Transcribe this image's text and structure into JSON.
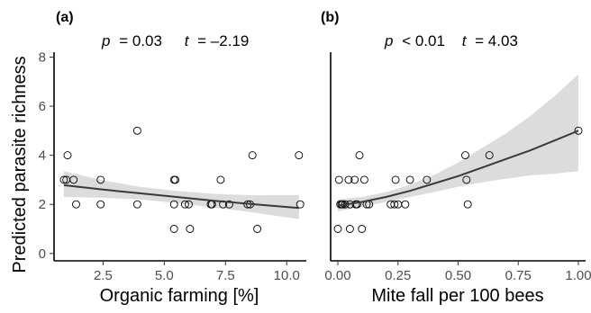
{
  "y_axis_title": "Predicted parasite richness",
  "chart_data": [
    {
      "type": "scatter",
      "panel_label": "(a)",
      "stat_p_symbol": "p",
      "stat_p_value": "= 0.03",
      "stat_t_symbol": "t",
      "stat_t_value": "= –2.19",
      "xlabel": "Organic farming [%]",
      "ylabel": "Predicted parasite richness",
      "xlim": [
        0.5,
        10.8
      ],
      "ylim": [
        -0.3,
        8.2
      ],
      "xticks": [
        2.5,
        5.0,
        7.5,
        10.0
      ],
      "xtick_labels": [
        "2.5",
        "5.0",
        "7.5",
        "10.0"
      ],
      "yticks": [
        0,
        2,
        4,
        6,
        8
      ],
      "ytick_labels": [
        "0",
        "2",
        "4",
        "6",
        "8"
      ],
      "points": [
        {
          "x": 0.9,
          "y": 3
        },
        {
          "x": 1.0,
          "y": 3
        },
        {
          "x": 1.05,
          "y": 4
        },
        {
          "x": 1.3,
          "y": 3
        },
        {
          "x": 1.4,
          "y": 2
        },
        {
          "x": 2.4,
          "y": 3
        },
        {
          "x": 2.4,
          "y": 2
        },
        {
          "x": 3.9,
          "y": 5
        },
        {
          "x": 3.9,
          "y": 2
        },
        {
          "x": 5.4,
          "y": 3
        },
        {
          "x": 5.45,
          "y": 3
        },
        {
          "x": 5.4,
          "y": 2
        },
        {
          "x": 5.4,
          "y": 1
        },
        {
          "x": 5.85,
          "y": 2
        },
        {
          "x": 6.0,
          "y": 2
        },
        {
          "x": 6.05,
          "y": 1
        },
        {
          "x": 6.9,
          "y": 2
        },
        {
          "x": 6.95,
          "y": 2
        },
        {
          "x": 7.3,
          "y": 3
        },
        {
          "x": 7.4,
          "y": 2
        },
        {
          "x": 7.65,
          "y": 2
        },
        {
          "x": 8.4,
          "y": 2
        },
        {
          "x": 8.5,
          "y": 2
        },
        {
          "x": 8.6,
          "y": 4
        },
        {
          "x": 8.8,
          "y": 1
        },
        {
          "x": 10.5,
          "y": 4
        },
        {
          "x": 10.55,
          "y": 2
        }
      ],
      "fit": {
        "x": [
          0.9,
          2.5,
          4.0,
          5.5,
          7.0,
          8.5,
          10.5
        ],
        "y": [
          2.78,
          2.6,
          2.45,
          2.3,
          2.15,
          2.02,
          1.85
        ]
      },
      "ci_upper": [
        3.35,
        2.98,
        2.72,
        2.55,
        2.43,
        2.37,
        2.38
      ],
      "ci_lower": [
        2.3,
        2.27,
        2.2,
        2.06,
        1.88,
        1.69,
        1.4
      ]
    },
    {
      "type": "scatter",
      "panel_label": "(b)",
      "stat_p_symbol": "p",
      "stat_p_value": "< 0.01",
      "stat_t_symbol": "t",
      "stat_t_value": "= 4.03",
      "xlabel": "Mite fall per 100 bees",
      "ylabel": "",
      "xlim": [
        -0.03,
        1.03
      ],
      "ylim": [
        -0.3,
        8.2
      ],
      "xticks": [
        0.0,
        0.25,
        0.5,
        0.75,
        1.0
      ],
      "xtick_labels": [
        "0.00",
        "0.25",
        "0.50",
        "0.75",
        "1.00"
      ],
      "yticks": [],
      "ytick_labels": [],
      "points": [
        {
          "x": 0.0,
          "y": 1
        },
        {
          "x": 0.005,
          "y": 3
        },
        {
          "x": 0.01,
          "y": 2
        },
        {
          "x": 0.015,
          "y": 2
        },
        {
          "x": 0.02,
          "y": 2
        },
        {
          "x": 0.03,
          "y": 2
        },
        {
          "x": 0.045,
          "y": 3
        },
        {
          "x": 0.05,
          "y": 2
        },
        {
          "x": 0.05,
          "y": 1
        },
        {
          "x": 0.07,
          "y": 3
        },
        {
          "x": 0.075,
          "y": 2
        },
        {
          "x": 0.08,
          "y": 2
        },
        {
          "x": 0.09,
          "y": 4
        },
        {
          "x": 0.1,
          "y": 1
        },
        {
          "x": 0.11,
          "y": 3
        },
        {
          "x": 0.12,
          "y": 2
        },
        {
          "x": 0.13,
          "y": 2
        },
        {
          "x": 0.22,
          "y": 2
        },
        {
          "x": 0.235,
          "y": 2
        },
        {
          "x": 0.24,
          "y": 3
        },
        {
          "x": 0.25,
          "y": 2
        },
        {
          "x": 0.28,
          "y": 2
        },
        {
          "x": 0.3,
          "y": 3
        },
        {
          "x": 0.37,
          "y": 3
        },
        {
          "x": 0.53,
          "y": 4
        },
        {
          "x": 0.535,
          "y": 3
        },
        {
          "x": 0.54,
          "y": 2
        },
        {
          "x": 0.63,
          "y": 4
        },
        {
          "x": 1.0,
          "y": 5
        }
      ],
      "fit": {
        "x": [
          0.0,
          0.1,
          0.2,
          0.3,
          0.4,
          0.5,
          0.6,
          0.7,
          0.8,
          0.9,
          1.0
        ],
        "y": [
          1.95,
          2.1,
          2.3,
          2.55,
          2.85,
          3.15,
          3.5,
          3.85,
          4.2,
          4.6,
          5.0
        ]
      },
      "ci_upper": [
        2.2,
        2.3,
        2.5,
        2.8,
        3.2,
        3.7,
        4.3,
        4.9,
        5.6,
        6.4,
        7.3
      ],
      "ci_lower": [
        1.72,
        1.9,
        2.1,
        2.3,
        2.5,
        2.72,
        2.9,
        3.05,
        3.18,
        3.25,
        3.35
      ]
    }
  ]
}
